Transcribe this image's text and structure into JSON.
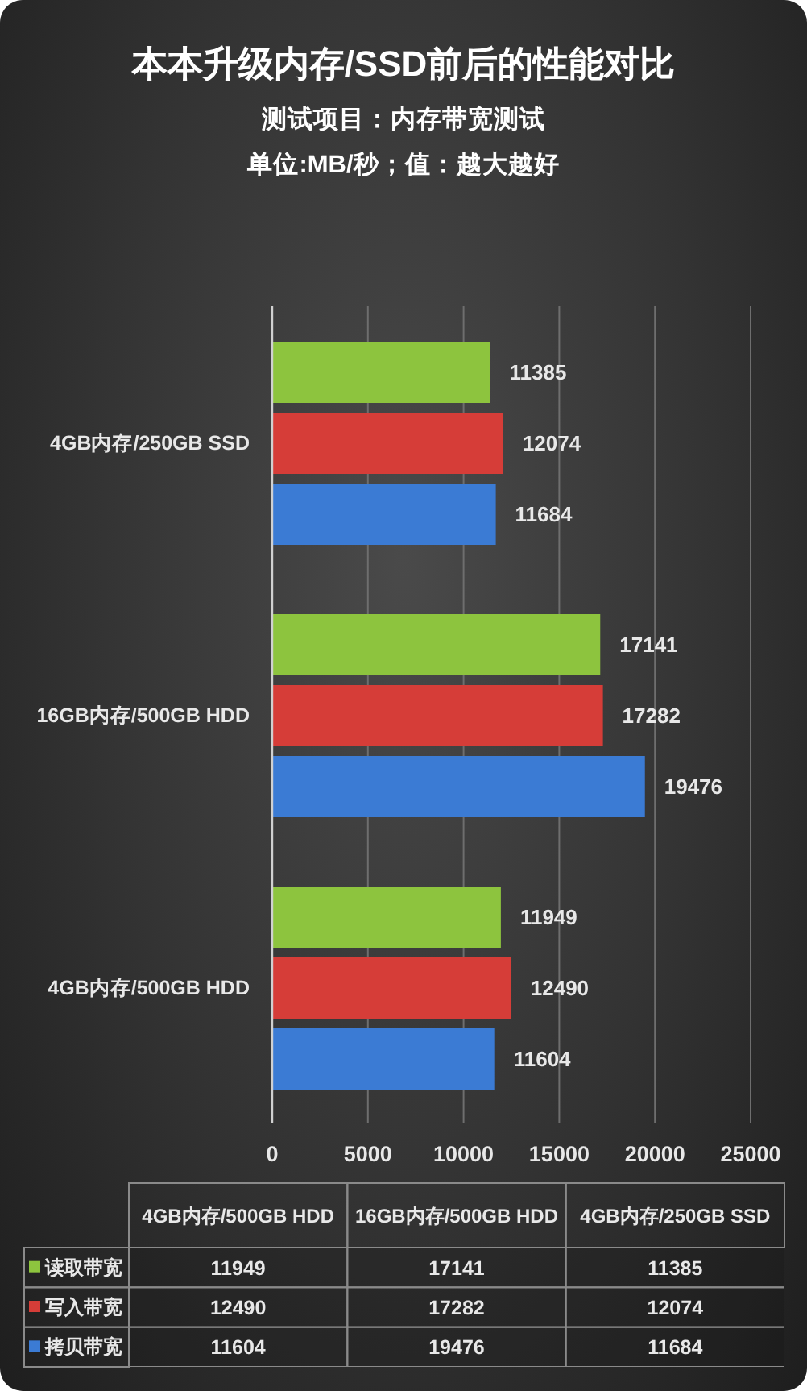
{
  "chart_data": [
    {
      "type": "bar",
      "orientation": "horizontal",
      "title": "本本升级内存/SSD前后的性能对比",
      "subtitle": "测试项目：内存带宽测试",
      "annotations": [
        "单位:MB/秒；值：越大越好"
      ],
      "categories": [
        "4GB内存/250GB SSD",
        "16GB内存/500GB HDD",
        "4GB内存/500GB HDD"
      ],
      "series": [
        {
          "color": "#8dc43e",
          "values": [
            11385,
            17141,
            11949
          ]
        },
        {
          "color": "#d63d38",
          "values": [
            12074,
            17282,
            12490
          ]
        },
        {
          "color": "#3b7bd4",
          "values": [
            11684,
            19476,
            11604
          ]
        }
      ],
      "xlim": [
        0,
        25000
      ],
      "xticks": [
        0,
        5000,
        10000,
        15000,
        20000,
        25000
      ],
      "grid": "x",
      "data_labels": true
    },
    {
      "type": "heatmap",
      "categories": [
        "4GB内存/500GB HDD",
        "16GB内存/500GB HDD",
        "4GB内存/250GB SSD"
      ],
      "y_categories": [
        "读取带宽",
        "写入带宽",
        "拷贝带宽"
      ],
      "cells": [
        [
          11949,
          17141,
          11385
        ],
        [
          12490,
          17282,
          12074
        ],
        [
          11604,
          19476,
          11684
        ]
      ],
      "data_labels": true
    }
  ]
}
